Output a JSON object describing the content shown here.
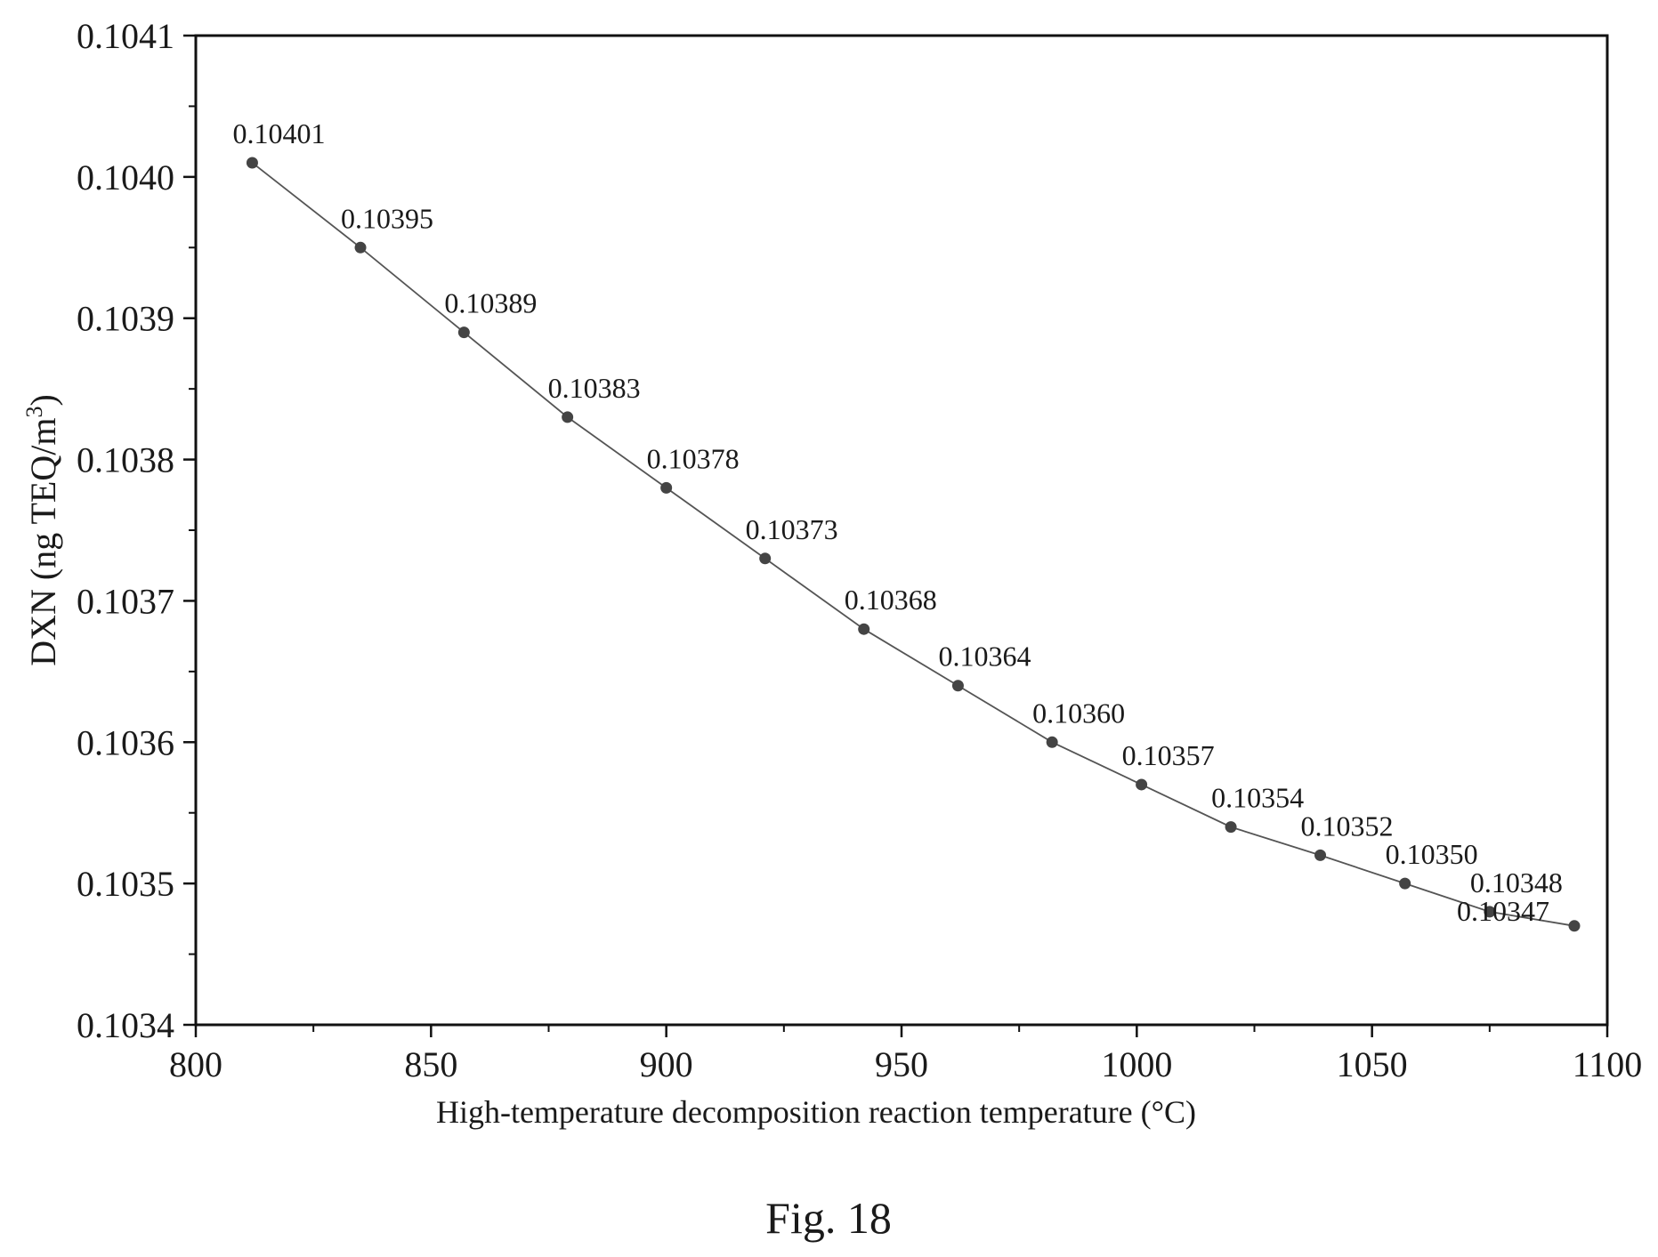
{
  "chart_data": {
    "type": "line",
    "xlabel": "High-temperature decomposition reaction temperature  (°C)",
    "ylabel_main": "DXN  (ng TEQ/m",
    "ylabel_sup": "3",
    "ylabel_close": ")",
    "xlim": [
      800,
      1100
    ],
    "ylim": [
      0.1034,
      0.1041
    ],
    "x_ticks": [
      800,
      850,
      900,
      950,
      1000,
      1050,
      1100
    ],
    "x_tick_labels": [
      "800",
      "850",
      "900",
      "950",
      "1000",
      "1050",
      "1100"
    ],
    "y_ticks": [
      0.1034,
      0.1035,
      0.1036,
      0.1037,
      0.1038,
      0.1039,
      0.104,
      0.1041
    ],
    "y_tick_labels": [
      "0.1034",
      "0.1035",
      "0.1036",
      "0.1037",
      "0.1038",
      "0.1039",
      "0.1040",
      "0.1041"
    ],
    "grid": false,
    "x": [
      812,
      835,
      857,
      879,
      900,
      921,
      942,
      962,
      982,
      1001,
      1020,
      1039,
      1057,
      1075,
      1093
    ],
    "values": [
      0.10401,
      0.10395,
      0.10389,
      0.10383,
      0.10378,
      0.10373,
      0.10368,
      0.10364,
      0.1036,
      0.10357,
      0.10354,
      0.10352,
      0.1035,
      0.10348,
      0.10347
    ],
    "data_labels": [
      "0.10401",
      "0.10395",
      "0.10389",
      "0.10383",
      "0.10378",
      "0.10373",
      "0.10368",
      "0.10364",
      "0.10360",
      "0.10357",
      "0.10354",
      "0.10352",
      "0.10350",
      "0.10348",
      "0.10347"
    ],
    "colors": {
      "line": "#555555",
      "marker": "#444444",
      "axis": "#111111"
    }
  },
  "caption": "Fig. 18"
}
